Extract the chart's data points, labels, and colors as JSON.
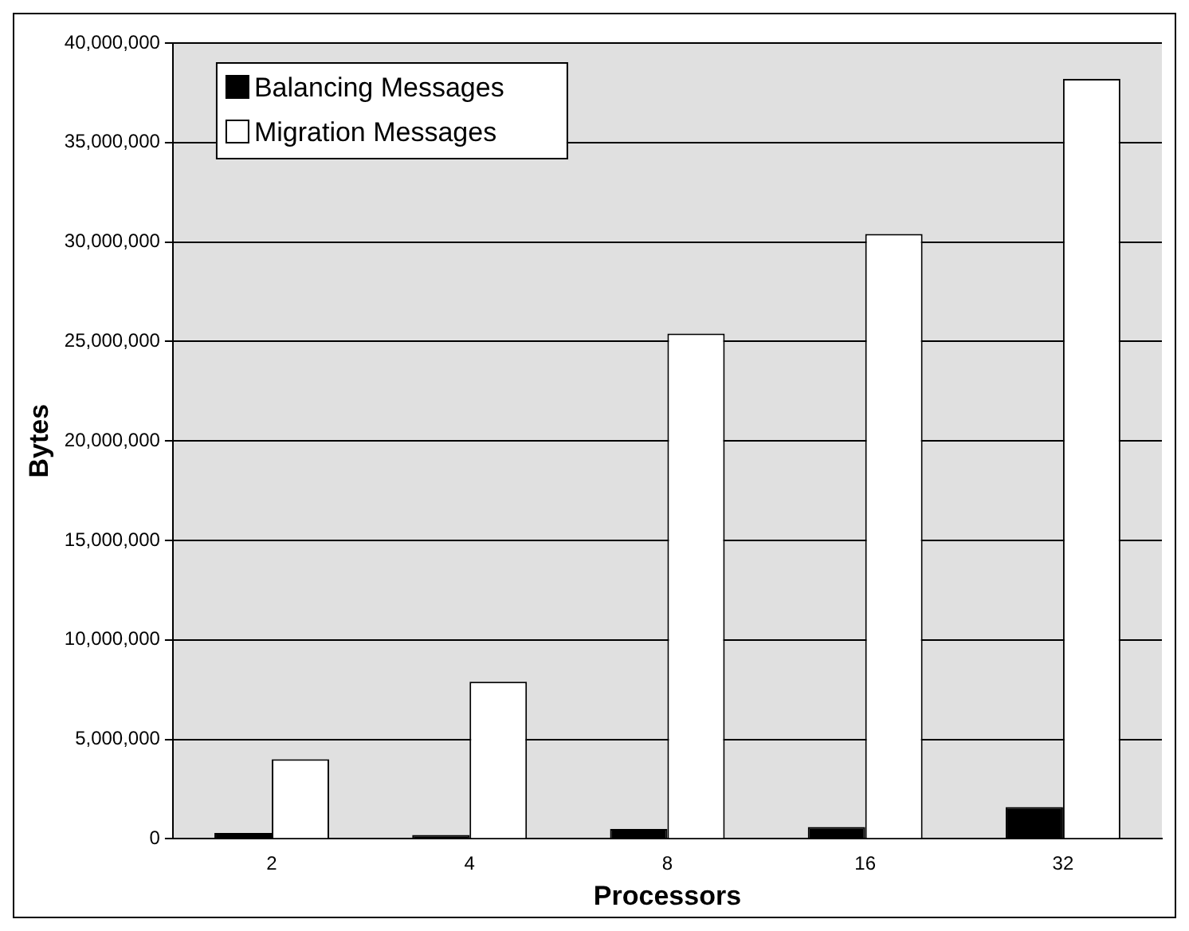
{
  "chart_data": {
    "type": "bar",
    "xlabel": "Processors",
    "ylabel": "Bytes",
    "categories": [
      "2",
      "4",
      "8",
      "16",
      "32"
    ],
    "series": [
      {
        "name": "Balancing Messages",
        "color": "#000000",
        "values": [
          300000,
          200000,
          500000,
          600000,
          1600000
        ]
      },
      {
        "name": "Migration Messages",
        "color": "#ffffff",
        "values": [
          4000000,
          7900000,
          25400000,
          30400000,
          38200000
        ]
      }
    ],
    "ylim": [
      0,
      40000000
    ],
    "yticks": [
      {
        "value": 0,
        "label": "0"
      },
      {
        "value": 5000000,
        "label": "5,000,000"
      },
      {
        "value": 10000000,
        "label": "10,000,000"
      },
      {
        "value": 15000000,
        "label": "15,000,000"
      },
      {
        "value": 20000000,
        "label": "20,000,000"
      },
      {
        "value": 25000000,
        "label": "25,000,000"
      },
      {
        "value": 30000000,
        "label": "30,000,000"
      },
      {
        "value": 35000000,
        "label": "35,000,000"
      },
      {
        "value": 40000000,
        "label": "40,000,000"
      }
    ],
    "grid": "y",
    "legend": "top left"
  }
}
